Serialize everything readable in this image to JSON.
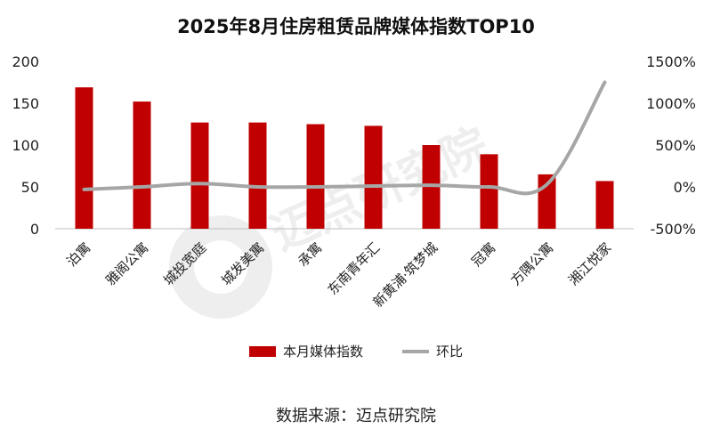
{
  "chart_data": {
    "type": "bar",
    "title": "2025年8月住房租赁品牌媒体指数TOP10",
    "categories": [
      "泊寓",
      "雅阁公寓",
      "城投宽庭",
      "城发美寓",
      "承寓",
      "东南青年汇",
      "新黄浦·筑梦城",
      "冠寓",
      "方隅公寓",
      "湘江悦家"
    ],
    "series": [
      {
        "name": "本月媒体指数",
        "axis": "left",
        "type": "bar",
        "values": [
          169,
          152,
          127,
          127,
          125,
          123,
          100,
          89,
          65,
          57
        ]
      },
      {
        "name": "环比",
        "axis": "right",
        "type": "line",
        "unit": "%",
        "values": [
          -30,
          0,
          40,
          0,
          0,
          10,
          20,
          0,
          30,
          1250
        ]
      }
    ],
    "y_left": {
      "min": 0,
      "max": 200,
      "ticks": [
        0,
        50,
        100,
        150,
        200
      ]
    },
    "y_right": {
      "min": -500,
      "max": 1500,
      "ticks": [
        "-500%",
        "0%",
        "500%",
        "1000%",
        "1500%"
      ]
    },
    "colors": {
      "bar": "#C00000",
      "line": "#A6A6A6"
    },
    "grid": false,
    "legend_position": "bottom",
    "watermark": "迈点研究院",
    "source": "数据来源：迈点研究院"
  }
}
